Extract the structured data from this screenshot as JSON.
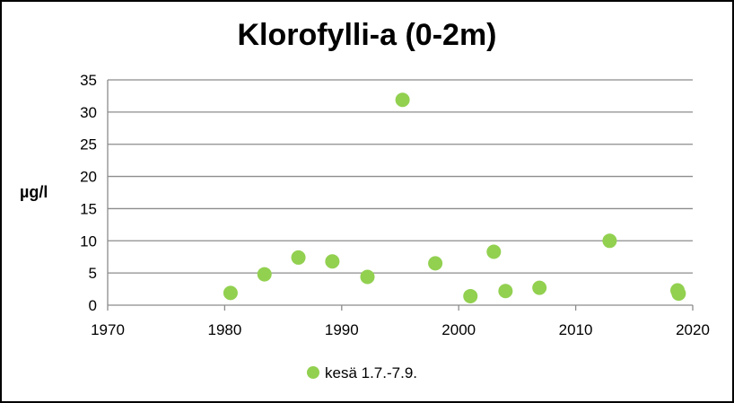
{
  "chart_data": {
    "type": "scatter",
    "title": "Klorofylli-a (0-2m)",
    "xlabel": "",
    "ylabel": "µg/l",
    "xlim": [
      1970,
      2020
    ],
    "ylim": [
      0,
      35
    ],
    "xticks": [
      1970,
      1980,
      1990,
      2000,
      2010,
      2020
    ],
    "yticks": [
      0,
      5,
      10,
      15,
      20,
      25,
      30,
      35
    ],
    "grid": "horizontal",
    "legend_position": "bottom",
    "series": [
      {
        "name": "kesä 1.7.-7.9.",
        "color": "#92d050",
        "points": [
          {
            "x": 1980.5,
            "y": 1.9
          },
          {
            "x": 1983.4,
            "y": 4.8
          },
          {
            "x": 1986.3,
            "y": 7.4
          },
          {
            "x": 1989.2,
            "y": 6.8
          },
          {
            "x": 1992.2,
            "y": 4.4
          },
          {
            "x": 1995.2,
            "y": 31.9
          },
          {
            "x": 1998.0,
            "y": 6.5
          },
          {
            "x": 2001.0,
            "y": 1.4
          },
          {
            "x": 2003.0,
            "y": 8.3
          },
          {
            "x": 2004.0,
            "y": 2.2
          },
          {
            "x": 2006.9,
            "y": 2.7
          },
          {
            "x": 2012.9,
            "y": 10.0
          },
          {
            "x": 2018.7,
            "y": 2.3
          },
          {
            "x": 2018.8,
            "y": 1.8
          }
        ]
      }
    ]
  }
}
